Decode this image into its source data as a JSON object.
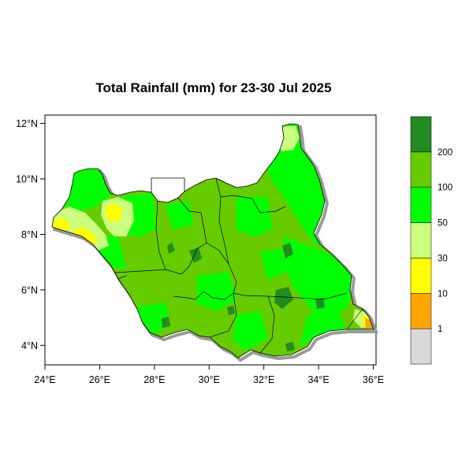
{
  "title": "Total Rainfall (mm) for 23-30 Jul 2025",
  "chart_data": {
    "type": "heatmap",
    "title": "Total Rainfall (mm) for 23-30 Jul 2025",
    "x_axis": {
      "ticks": [
        24,
        26,
        28,
        30,
        32,
        34,
        36
      ],
      "tick_labels": [
        "24°E",
        "26°E",
        "28°E",
        "30°E",
        "32°E",
        "34°E",
        "36°E"
      ],
      "range": [
        24,
        36.1
      ]
    },
    "y_axis": {
      "ticks": [
        4,
        6,
        8,
        10,
        12
      ],
      "tick_labels": [
        "4°N",
        "6°N",
        "8°N",
        "10°N",
        "12°N"
      ],
      "range": [
        3.3,
        12.3
      ]
    },
    "legend": {
      "placement": "right",
      "bins": [
        {
          "color": "#d9d9d9"
        },
        {
          "color": "#ffa500"
        },
        {
          "color": "#ffff00"
        },
        {
          "color": "#ccff80"
        },
        {
          "color": "#00ff00"
        },
        {
          "color": "#66cc00"
        },
        {
          "color": "#228b22"
        }
      ],
      "thresholds": [
        "1",
        "10",
        "30",
        "50",
        "100",
        "200"
      ]
    }
  }
}
